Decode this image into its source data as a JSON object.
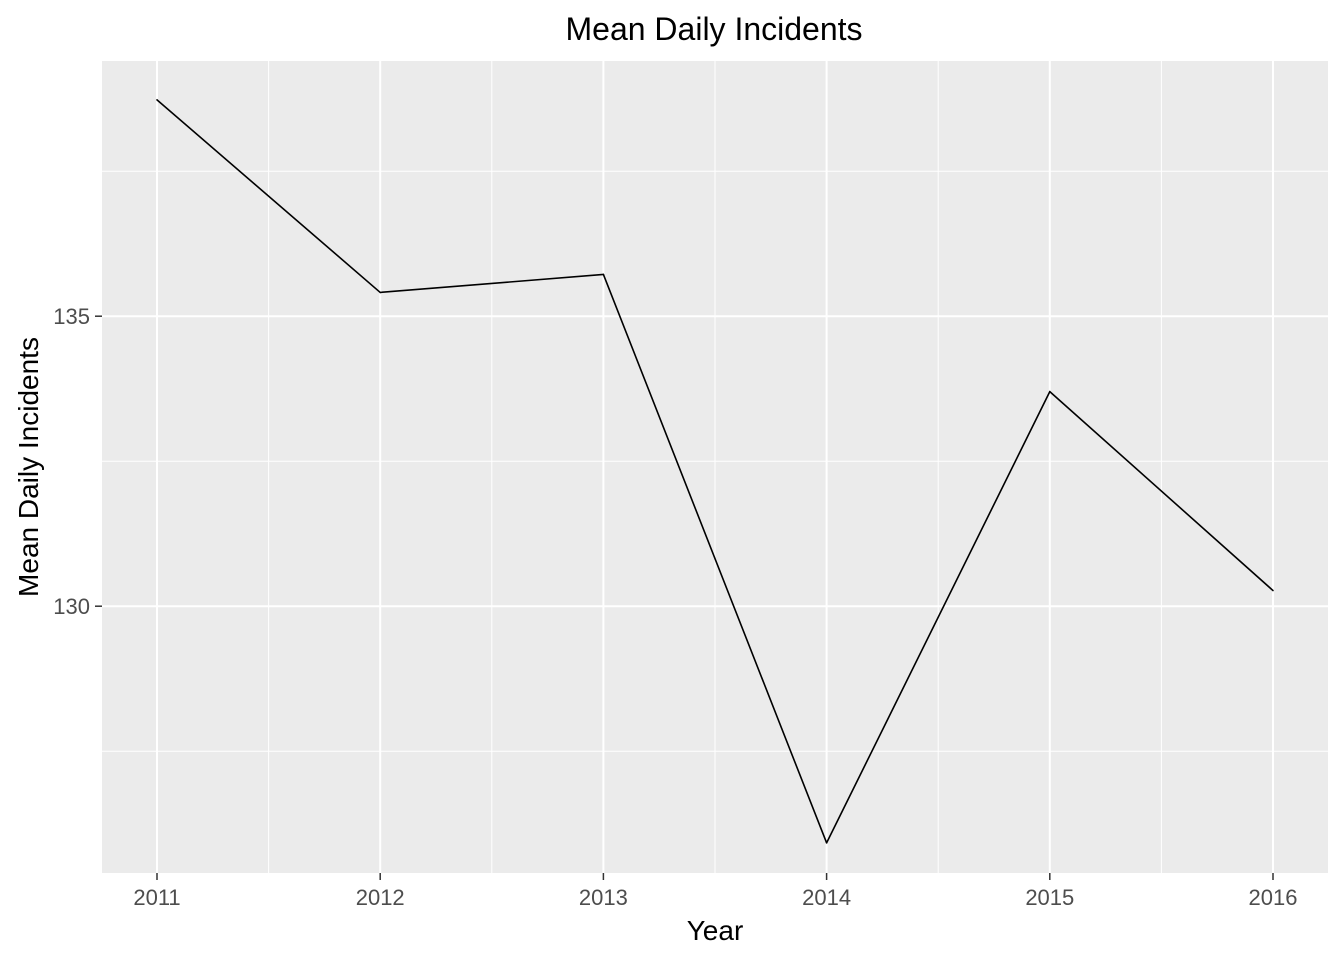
{
  "chart_data": {
    "type": "line",
    "title": "Mean Daily Incidents",
    "xlabel": "Year",
    "ylabel": "Mean Daily Incidents",
    "x": [
      2011,
      2012,
      2013,
      2014,
      2015,
      2016
    ],
    "series": [
      {
        "values": [
          138.73,
          135.41,
          135.72,
          125.92,
          133.7,
          130.27
        ]
      }
    ],
    "xticks": [
      "2011",
      "2012",
      "2013",
      "2014",
      "2015",
      "2016"
    ],
    "yticks": [
      "130",
      "135"
    ],
    "ylim": [
      125.4,
      139.4
    ],
    "grid": true,
    "colors": {
      "panel_background": "#ebebeb",
      "grid": "#ffffff",
      "line": "#000000",
      "tick_text": "#4d4d4d",
      "tick_mark": "#333333"
    }
  }
}
